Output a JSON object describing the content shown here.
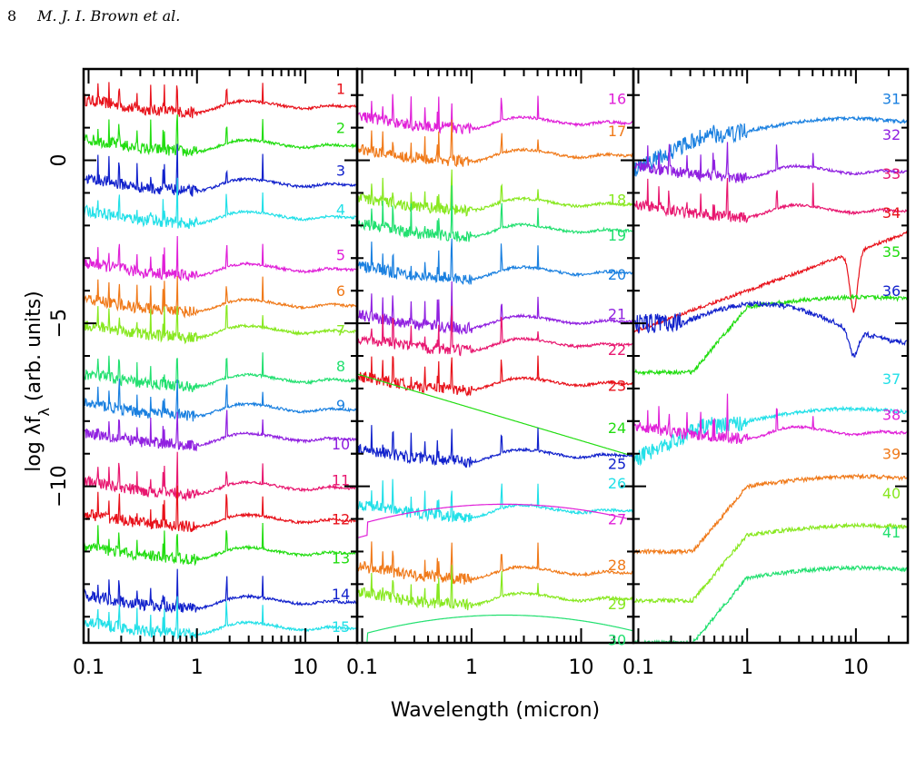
{
  "page_header": {
    "page_number": "8",
    "authors": "M. J. I. Brown et al."
  },
  "chart_data": {
    "type": "line",
    "xlabel": "Wavelength (micron)",
    "ylabel": "log λf_λ (arb. units)",
    "ylabel_main": "log λf",
    "ylabel_sub": "λ",
    "ylabel_tail": " (arb. units)",
    "y_ticks": [
      {
        "value": 0,
        "label": "0"
      },
      {
        "value": -5,
        "label": "−5"
      },
      {
        "value": -10,
        "label": "−10"
      }
    ],
    "ylim": [
      -14.8,
      2.8
    ],
    "x_scale": "log",
    "panels": [
      {
        "xlim": [
          0.09,
          30
        ],
        "x_ticks": [
          {
            "value": 0.1,
            "label": "0.1"
          },
          {
            "value": 1,
            "label": "1"
          },
          {
            "value": 10,
            "label": "10"
          }
        ],
        "series": [
          {
            "name": "1",
            "color": "#e8121b",
            "offset": 1.7,
            "kind": "opt",
            "label_y": 2.2
          },
          {
            "name": "2",
            "color": "#22dd11",
            "offset": 0.5,
            "kind": "opt",
            "label_y": 1.0
          },
          {
            "name": "3",
            "color": "#1222cc",
            "offset": -0.7,
            "kind": "opt",
            "label_y": -0.3
          },
          {
            "name": "4",
            "color": "#22e0e8",
            "offset": -1.7,
            "kind": "opt",
            "label_y": -1.5
          },
          {
            "name": "5",
            "color": "#e020d8",
            "offset": -3.3,
            "kind": "opt",
            "label_y": -2.9
          },
          {
            "name": "6",
            "color": "#f07a1a",
            "offset": -4.4,
            "kind": "opt",
            "label_y": -4.0
          },
          {
            "name": "7",
            "color": "#88e820",
            "offset": -5.2,
            "kind": "opt",
            "label_y": -5.2
          },
          {
            "name": "8",
            "color": "#22e070",
            "offset": -6.7,
            "kind": "opt",
            "label_y": -6.3
          },
          {
            "name": "9",
            "color": "#1a80e0",
            "offset": -7.6,
            "kind": "opt",
            "label_y": -7.5
          },
          {
            "name": "10",
            "color": "#9020e0",
            "offset": -8.5,
            "kind": "opt",
            "label_y": -8.7
          },
          {
            "name": "11",
            "color": "#e81870",
            "offset": -10.0,
            "kind": "opt",
            "label_y": -9.8
          },
          {
            "name": "12",
            "color": "#e8121b",
            "offset": -11.0,
            "kind": "opt",
            "label_y": -11.0
          },
          {
            "name": "13",
            "color": "#22dd11",
            "offset": -12.0,
            "kind": "opt",
            "label_y": -12.2
          },
          {
            "name": "14",
            "color": "#1222cc",
            "offset": -13.5,
            "kind": "opt",
            "label_y": -13.3
          },
          {
            "name": "15",
            "color": "#22e0e8",
            "offset": -14.3,
            "kind": "opt",
            "label_y": -14.3
          }
        ]
      },
      {
        "xlim": [
          0.09,
          30
        ],
        "x_ticks": [
          {
            "value": 0.1,
            "label": "0.1"
          },
          {
            "value": 1,
            "label": "1"
          },
          {
            "value": 10,
            "label": "10"
          }
        ],
        "series": [
          {
            "name": "16",
            "color": "#e020d8",
            "offset": 1.2,
            "kind": "opt",
            "label_y": 1.9
          },
          {
            "name": "17",
            "color": "#f07a1a",
            "offset": 0.2,
            "kind": "opt",
            "label_y": 0.9
          },
          {
            "name": "18",
            "color": "#88e820",
            "offset": -1.3,
            "kind": "opt",
            "label_y": -1.2
          },
          {
            "name": "19",
            "color": "#22e070",
            "offset": -2.1,
            "kind": "opt",
            "label_y": -2.3
          },
          {
            "name": "20",
            "color": "#1a80e0",
            "offset": -3.4,
            "kind": "opt",
            "label_y": -3.5
          },
          {
            "name": "21",
            "color": "#9020e0",
            "offset": -4.9,
            "kind": "opt",
            "label_y": -4.7
          },
          {
            "name": "22",
            "color": "#e81870",
            "offset": -5.6,
            "kind": "opt",
            "label_y": -5.8
          },
          {
            "name": "23",
            "color": "#e8121b",
            "offset": -6.8,
            "kind": "opt",
            "label_y": -6.9
          },
          {
            "name": "24",
            "color": "#22dd11",
            "offset": -6.6,
            "kind": "rj",
            "label_y": -8.2
          },
          {
            "name": "25",
            "color": "#1222cc",
            "offset": -9.0,
            "kind": "opt",
            "label_y": -9.3
          },
          {
            "name": "26",
            "color": "#22e0e8",
            "offset": -10.7,
            "kind": "opt",
            "label_y": -9.9
          },
          {
            "name": "27",
            "color": "#e020d8",
            "offset": -10.9,
            "kind": "bb",
            "label_y": -11.0
          },
          {
            "name": "28",
            "color": "#f07a1a",
            "offset": -12.6,
            "kind": "opt",
            "label_y": -12.4
          },
          {
            "name": "29",
            "color": "#88e820",
            "offset": -13.4,
            "kind": "opt",
            "label_y": -13.6
          },
          {
            "name": "30",
            "color": "#22e070",
            "offset": -14.3,
            "kind": "bb",
            "label_y": -14.7
          }
        ]
      },
      {
        "xlim": [
          0.09,
          30
        ],
        "x_ticks": [
          {
            "value": 0.1,
            "label": "0.1"
          },
          {
            "value": 1,
            "label": "1"
          },
          {
            "value": 10,
            "label": "10"
          }
        ],
        "series": [
          {
            "name": "31",
            "color": "#1a80e0",
            "offset": 0.9,
            "kind": "qso",
            "label_y": 1.9
          },
          {
            "name": "32",
            "color": "#9020e0",
            "offset": -0.3,
            "kind": "opt",
            "label_y": 0.8
          },
          {
            "name": "33",
            "color": "#e81870",
            "offset": -1.5,
            "kind": "opt",
            "label_y": -0.4
          },
          {
            "name": "34",
            "color": "#e8121b",
            "offset": -4.0,
            "kind": "dust",
            "label_y": -1.6
          },
          {
            "name": "35",
            "color": "#22dd11",
            "offset": -5.0,
            "kind": "dust2",
            "label_y": -2.8
          },
          {
            "name": "36",
            "color": "#1222cc",
            "offset": -5.0,
            "kind": "agn",
            "label_y": -4.0
          },
          {
            "name": "37",
            "color": "#22e0e8",
            "offset": -8.0,
            "kind": "qso",
            "label_y": -6.7
          },
          {
            "name": "38",
            "color": "#e020d8",
            "offset": -8.3,
            "kind": "opt",
            "label_y": -7.8
          },
          {
            "name": "39",
            "color": "#f07a1a",
            "offset": -10.5,
            "kind": "dust2",
            "label_y": -9.0
          },
          {
            "name": "40",
            "color": "#88e820",
            "offset": -12.0,
            "kind": "dust2",
            "label_y": -10.2
          },
          {
            "name": "41",
            "color": "#22e070",
            "offset": -13.3,
            "kind": "dust2",
            "label_y": -11.4
          }
        ]
      }
    ]
  }
}
